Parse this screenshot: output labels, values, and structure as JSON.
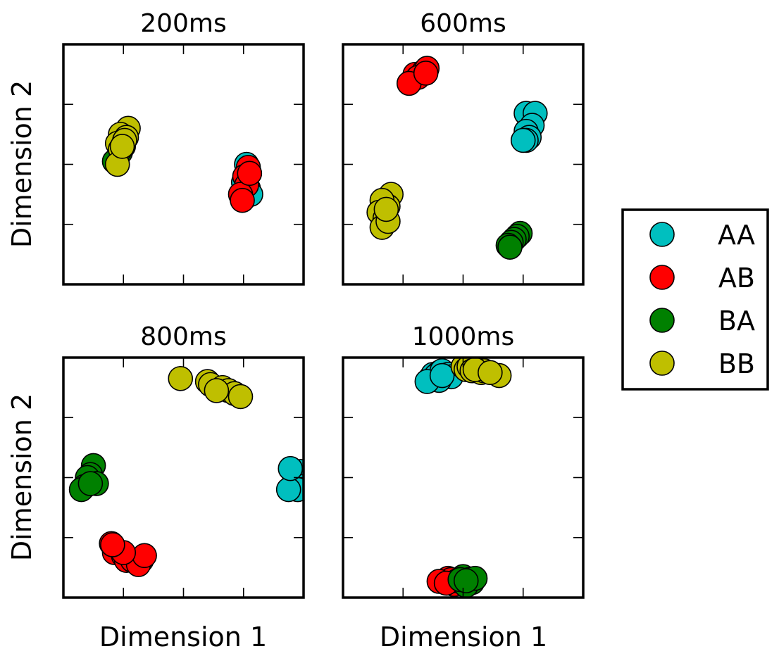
{
  "chart_data": {
    "type": "scatter",
    "xlabel": "Dimension 1",
    "ylabel": "Dimension 2",
    "series_colors": {
      "AA": "#00bfbf",
      "AB": "#ff0000",
      "BA": "#008000",
      "BB": "#bfbf00"
    },
    "legend": {
      "placement": "right",
      "entries": [
        "AA",
        "AB",
        "BA",
        "BB"
      ]
    },
    "grid": false,
    "panels": [
      {
        "title": "200ms",
        "xlim": [
          0,
          4
        ],
        "ylim": [
          0,
          4
        ],
        "series": [
          {
            "name": "AA",
            "points": [
              [
                3.05,
                2.0
              ],
              [
                3.1,
                1.85
              ],
              [
                3.0,
                1.7
              ],
              [
                3.08,
                1.6
              ],
              [
                2.97,
                1.45
              ],
              [
                3.12,
                1.5
              ]
            ]
          },
          {
            "name": "AB",
            "points": [
              [
                3.08,
                1.95
              ],
              [
                3.02,
                1.8
              ],
              [
                3.05,
                1.65
              ],
              [
                2.95,
                1.5
              ],
              [
                2.98,
                1.4
              ],
              [
                3.1,
                1.85
              ]
            ]
          },
          {
            "name": "BA",
            "points": [
              [
                0.9,
                2.1
              ],
              [
                0.95,
                2.2
              ],
              [
                0.85,
                2.05
              ],
              [
                1.0,
                2.3
              ]
            ]
          },
          {
            "name": "BB",
            "points": [
              [
                1.08,
                2.6
              ],
              [
                0.95,
                2.5
              ],
              [
                1.05,
                2.45
              ],
              [
                0.9,
                2.35
              ],
              [
                0.95,
                2.25
              ],
              [
                0.9,
                2.0
              ],
              [
                1.02,
                2.4
              ],
              [
                0.98,
                2.3
              ]
            ]
          }
        ]
      },
      {
        "title": "600ms",
        "xlim": [
          0,
          4
        ],
        "ylim": [
          0,
          4
        ],
        "series": [
          {
            "name": "AA",
            "points": [
              [
                3.05,
                2.85
              ],
              [
                3.2,
                2.85
              ],
              [
                3.15,
                2.65
              ],
              [
                3.05,
                2.55
              ],
              [
                3.1,
                2.45
              ],
              [
                3.05,
                2.4
              ],
              [
                3.0,
                2.4
              ]
            ]
          },
          {
            "name": "AB",
            "points": [
              [
                1.2,
                3.5
              ],
              [
                1.35,
                3.55
              ],
              [
                1.4,
                3.6
              ],
              [
                1.25,
                3.45
              ],
              [
                1.1,
                3.35
              ],
              [
                1.38,
                3.52
              ]
            ]
          },
          {
            "name": "BA",
            "points": [
              [
                2.95,
                0.85
              ],
              [
                2.9,
                0.8
              ],
              [
                2.85,
                0.75
              ],
              [
                2.8,
                0.7
              ],
              [
                2.75,
                0.65
              ],
              [
                2.78,
                0.62
              ]
            ]
          },
          {
            "name": "BB",
            "points": [
              [
                0.8,
                1.5
              ],
              [
                0.75,
                1.3
              ],
              [
                0.65,
                1.4
              ],
              [
                0.6,
                1.2
              ],
              [
                0.7,
                1.1
              ],
              [
                0.65,
                0.95
              ],
              [
                0.75,
                1.05
              ],
              [
                0.72,
                1.25
              ]
            ]
          }
        ]
      },
      {
        "title": "800ms",
        "xlim": [
          0,
          4
        ],
        "ylim": [
          0,
          4
        ],
        "series": [
          {
            "name": "AA",
            "points": [
              [
                3.95,
                2.1
              ],
              [
                3.9,
                2.0
              ],
              [
                3.85,
                1.95
              ],
              [
                3.95,
                1.85
              ],
              [
                3.9,
                1.8
              ],
              [
                3.75,
                1.8
              ],
              [
                3.78,
                2.15
              ]
            ]
          },
          {
            "name": "AB",
            "points": [
              [
                0.8,
                0.9
              ],
              [
                0.85,
                0.75
              ],
              [
                1.0,
                0.7
              ],
              [
                1.05,
                0.62
              ],
              [
                1.15,
                0.62
              ],
              [
                1.3,
                0.62
              ],
              [
                1.25,
                0.55
              ],
              [
                1.35,
                0.7
              ],
              [
                1.0,
                0.75
              ],
              [
                0.82,
                0.88
              ]
            ]
          },
          {
            "name": "BA",
            "points": [
              [
                0.5,
                2.2
              ],
              [
                0.45,
                2.05
              ],
              [
                0.4,
                2.0
              ],
              [
                0.35,
                1.85
              ],
              [
                0.55,
                1.9
              ],
              [
                0.3,
                1.8
              ],
              [
                0.45,
                1.9
              ]
            ]
          },
          {
            "name": "BB",
            "points": [
              [
                1.95,
                3.65
              ],
              [
                2.4,
                3.6
              ],
              [
                2.45,
                3.55
              ],
              [
                2.65,
                3.5
              ],
              [
                2.75,
                3.45
              ],
              [
                2.85,
                3.4
              ],
              [
                2.95,
                3.35
              ],
              [
                2.55,
                3.45
              ]
            ]
          }
        ]
      },
      {
        "title": "1000ms",
        "xlim": [
          0,
          4
        ],
        "ylim": [
          0,
          4
        ],
        "series": [
          {
            "name": "AA",
            "points": [
              [
                1.45,
                3.65
              ],
              [
                1.5,
                3.72
              ],
              [
                1.6,
                3.75
              ],
              [
                1.55,
                3.7
              ],
              [
                1.65,
                3.78
              ],
              [
                1.75,
                3.72
              ],
              [
                1.8,
                3.68
              ],
              [
                1.6,
                3.62
              ],
              [
                1.4,
                3.6
              ],
              [
                1.65,
                3.7
              ]
            ]
          },
          {
            "name": "AB",
            "points": [
              [
                1.7,
                0.28
              ],
              [
                1.75,
                0.32
              ],
              [
                1.8,
                0.3
              ],
              [
                1.6,
                0.27
              ],
              [
                1.85,
                0.22
              ],
              [
                1.9,
                0.28
              ],
              [
                1.72,
                0.24
              ]
            ]
          },
          {
            "name": "BA",
            "points": [
              [
                2.0,
                0.35
              ],
              [
                2.1,
                0.3
              ],
              [
                2.15,
                0.25
              ],
              [
                2.05,
                0.2
              ],
              [
                1.95,
                0.3
              ],
              [
                2.2,
                0.32
              ],
              [
                2.05,
                0.28
              ]
            ]
          },
          {
            "name": "BB",
            "points": [
              [
                2.0,
                3.85
              ],
              [
                2.05,
                3.8
              ],
              [
                2.1,
                3.85
              ],
              [
                2.15,
                3.78
              ],
              [
                2.3,
                3.75
              ],
              [
                2.35,
                3.78
              ],
              [
                2.6,
                3.7
              ],
              [
                2.2,
                3.8
              ],
              [
                2.45,
                3.75
              ]
            ]
          }
        ]
      }
    ]
  }
}
